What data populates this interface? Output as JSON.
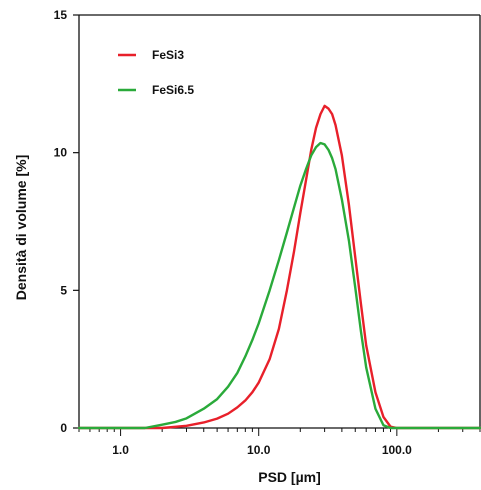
{
  "chart_data": {
    "type": "line",
    "title": "",
    "xlabel": "PSD [µm]",
    "ylabel": "Densità di volume [%]",
    "xscale": "log",
    "xlim": [
      0.5,
      400
    ],
    "ylim": [
      0,
      15
    ],
    "xtick_labels": [
      "1.0",
      "10.0",
      "100.0"
    ],
    "xtick_values": [
      1,
      10,
      100
    ],
    "ytick_labels": [
      "0",
      "5",
      "10",
      "15"
    ],
    "ytick_values": [
      0,
      5,
      10,
      15
    ],
    "grid": false,
    "legend_position": "top-left",
    "series": [
      {
        "name": "FeSi3",
        "color": "#e8202a",
        "x": [
          0.5,
          2,
          3,
          4,
          5,
          6,
          7,
          8,
          9,
          10,
          12,
          14,
          16,
          18,
          20,
          22,
          24,
          26,
          28,
          30,
          32,
          34,
          36,
          40,
          45,
          50,
          55,
          60,
          70,
          80,
          90,
          100,
          110,
          400
        ],
        "y": [
          0,
          0,
          0.08,
          0.2,
          0.34,
          0.52,
          0.75,
          1.0,
          1.3,
          1.65,
          2.5,
          3.6,
          5.0,
          6.4,
          7.8,
          9.0,
          10.1,
          10.9,
          11.4,
          11.7,
          11.6,
          11.4,
          11.0,
          9.9,
          8.1,
          6.2,
          4.5,
          3.0,
          1.3,
          0.4,
          0.05,
          0,
          0,
          0
        ]
      },
      {
        "name": "FeSi6.5",
        "color": "#2aaa3a",
        "x": [
          0.5,
          1.5,
          2,
          2.5,
          3,
          4,
          5,
          6,
          7,
          8,
          9,
          10,
          12,
          14,
          16,
          18,
          20,
          22,
          24,
          26,
          28,
          30,
          32,
          34,
          36,
          40,
          45,
          50,
          55,
          60,
          70,
          80,
          90,
          400
        ],
        "y": [
          0,
          0,
          0.12,
          0.22,
          0.35,
          0.7,
          1.05,
          1.5,
          2.0,
          2.6,
          3.2,
          3.8,
          5.0,
          6.1,
          7.1,
          8.0,
          8.8,
          9.4,
          9.9,
          10.2,
          10.35,
          10.3,
          10.1,
          9.8,
          9.4,
          8.3,
          6.8,
          5.1,
          3.5,
          2.2,
          0.7,
          0.1,
          0,
          0
        ]
      }
    ]
  }
}
